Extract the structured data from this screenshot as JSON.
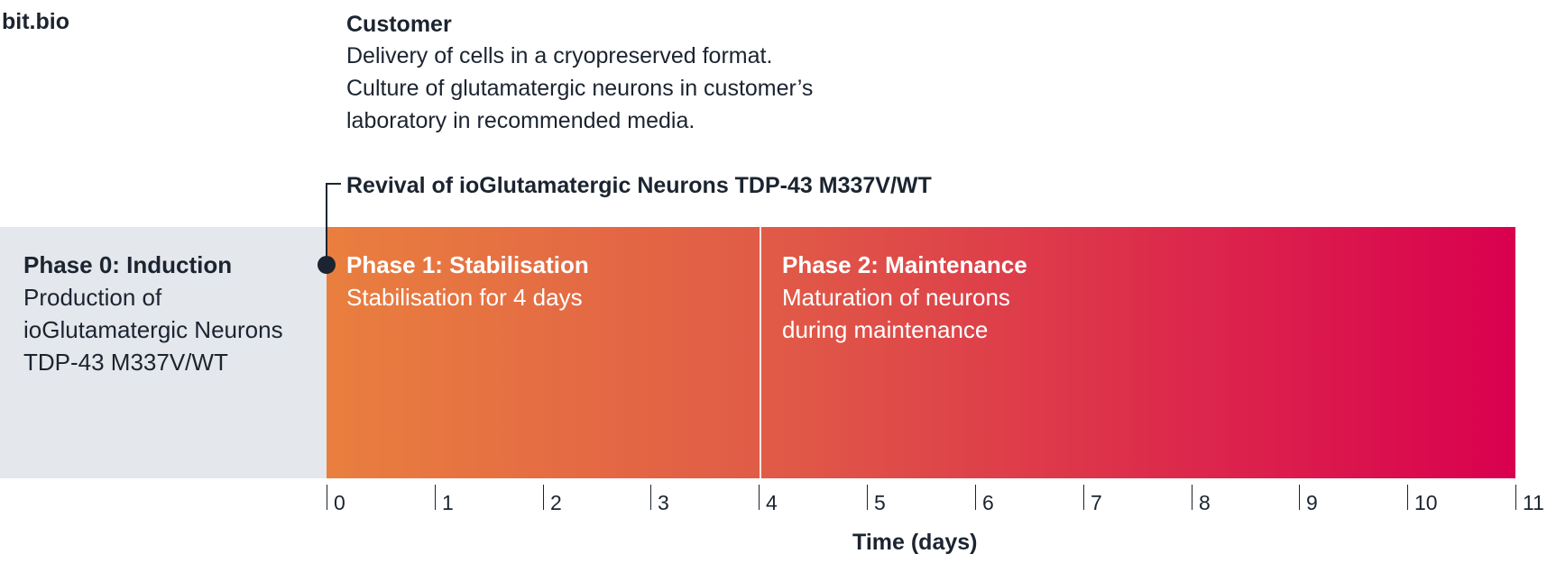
{
  "header": {
    "brand": "bit.bio"
  },
  "customer": {
    "title": "Customer",
    "lines": [
      "Delivery of cells in a cryopreserved format.",
      "Culture of glutamatergic neurons in customer’s",
      "laboratory in recommended media."
    ]
  },
  "revival_label": "Revival of ioGlutamatergic Neurons TDP-43 M337V/WT",
  "phases": [
    {
      "title": "Phase 0: Induction",
      "description": "Production of ioGlutamatergic Neurons TDP-43 M337V/WT",
      "color": "#e4e7eb"
    },
    {
      "title": "Phase 1: Stabilisation",
      "description": "Stabilisation for 4 days",
      "start_day": 0,
      "end_day": 4,
      "color": "#e97f3f"
    },
    {
      "title": "Phase 2: Maintenance",
      "description": "Maturation of neurons during maintenance",
      "start_day": 4,
      "end_day": 11,
      "color": "#d9004f"
    }
  ],
  "axis": {
    "title": "Time (days)",
    "ticks": [
      "0",
      "1",
      "2",
      "3",
      "4",
      "5",
      "6",
      "7",
      "8",
      "9",
      "10",
      "11"
    ]
  }
}
